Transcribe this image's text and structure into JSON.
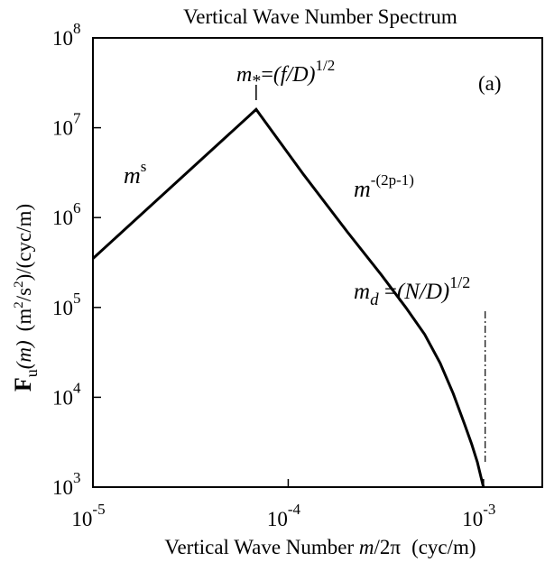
{
  "chart_data": {
    "type": "line",
    "title": "Vertical Wave Number Spectrum",
    "xlabel": {
      "prefix": "Vertical Wave Number ",
      "var": "m",
      "suffix": "/2π",
      "unit": "(cyc/m)"
    },
    "ylabel": {
      "F": "F",
      "sub": "u",
      "arg": "(m)",
      "unit_a": "(m",
      "sup2a": "2",
      "unit_b": "/s",
      "sup2b": "2",
      "unit_c": ")/(cyc/m)"
    },
    "x_scale": "log",
    "y_scale": "log",
    "xlim": [
      1e-05,
      0.002
    ],
    "ylim": [
      1000,
      100000000
    ],
    "x_ticks": [
      {
        "value": 1e-05,
        "base": "10",
        "exp": "-5"
      },
      {
        "value": 0.0001,
        "base": "10",
        "exp": "-4"
      },
      {
        "value": 0.001,
        "base": "10",
        "exp": "-3"
      }
    ],
    "y_ticks": [
      {
        "value": 1000,
        "base": "10",
        "exp": "3"
      },
      {
        "value": 10000,
        "base": "10",
        "exp": "4"
      },
      {
        "value": 100000,
        "base": "10",
        "exp": "5"
      },
      {
        "value": 1000000,
        "base": "10",
        "exp": "6"
      },
      {
        "value": 10000000,
        "base": "10",
        "exp": "7"
      },
      {
        "value": 100000000,
        "base": "10",
        "exp": "8"
      }
    ],
    "series": [
      {
        "x": [
          1e-05,
          6.85e-05,
          0.00012,
          0.0002,
          0.0003,
          0.0004,
          0.0005,
          0.0006,
          0.0007,
          0.0008,
          0.00087,
          0.00093,
          0.00097,
          0.001
        ],
        "y": [
          350000,
          16000000,
          3000000,
          700000,
          230000,
          100000,
          50000,
          24000,
          11000,
          5000,
          3000,
          1900,
          1300,
          1000
        ]
      }
    ],
    "annotations": {
      "panel": "(a)",
      "low_slope": {
        "base": "m",
        "exp": "s"
      },
      "high_slope": {
        "base": "m",
        "exp": "-(2p-1)"
      },
      "peak": {
        "m": "m",
        "sub": "*",
        "eq": "=",
        "expr": "(f/D)",
        "exp": "1/2",
        "x": 6.85e-05
      },
      "cutoff": {
        "m": "m",
        "sub": "d",
        "eq": " =",
        "expr": "(N/D)",
        "exp": "1/2",
        "x": 0.00102
      }
    }
  }
}
